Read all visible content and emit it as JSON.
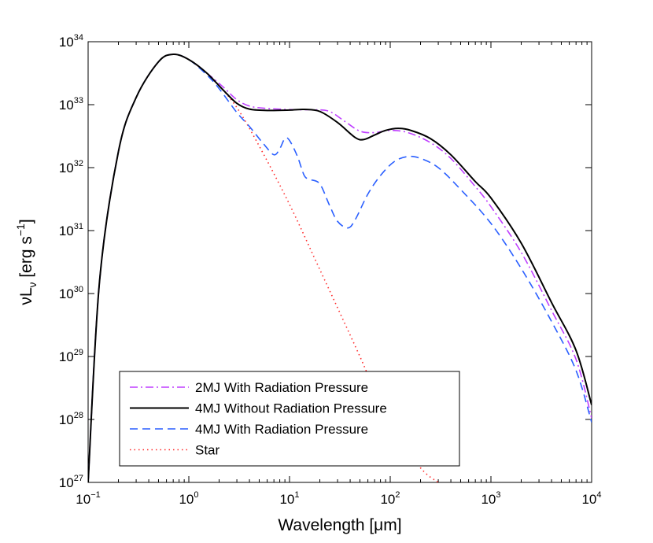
{
  "chart_data": {
    "type": "line",
    "xscale": "log",
    "yscale": "log",
    "xlim": [
      0.1,
      10000
    ],
    "ylim": [
      1e+27,
      1e+34
    ],
    "xlabel": "Wavelength [μm]",
    "ylabel": {
      "base": "νL",
      "subscript": "ν",
      "units": " [erg s",
      "units_exp": "−1",
      "units_close": "]"
    },
    "x_tick_labels": [
      {
        "base": "10",
        "exp": "−1",
        "value": 0.1
      },
      {
        "base": "10",
        "exp": "0",
        "value": 1
      },
      {
        "base": "10",
        "exp": "1",
        "value": 10
      },
      {
        "base": "10",
        "exp": "2",
        "value": 100
      },
      {
        "base": "10",
        "exp": "3",
        "value": 1000
      },
      {
        "base": "10",
        "exp": "4",
        "value": 10000
      }
    ],
    "y_tick_labels": [
      {
        "base": "10",
        "exp": "27",
        "value": 1e+27
      },
      {
        "base": "10",
        "exp": "28",
        "value": 1e+28
      },
      {
        "base": "10",
        "exp": "29",
        "value": 1e+29
      },
      {
        "base": "10",
        "exp": "30",
        "value": 1e+30
      },
      {
        "base": "10",
        "exp": "31",
        "value": 1e+31
      },
      {
        "base": "10",
        "exp": "32",
        "value": 1e+32
      },
      {
        "base": "10",
        "exp": "33",
        "value": 1e+33
      },
      {
        "base": "10",
        "exp": "34",
        "value": 1e+34
      }
    ],
    "legend_position": "bottom-left",
    "series": [
      {
        "name": "2MJ With Radiation Pressure",
        "color": "#bf3fff",
        "dash": "dashdot",
        "points": [
          [
            0.1,
            1e+27
          ],
          [
            0.13,
            1.6e+30
          ],
          [
            0.2,
            1.8e+32
          ],
          [
            0.3,
            1.3e+33
          ],
          [
            0.5,
            4.8e+33
          ],
          [
            0.7,
            6.3e+33
          ],
          [
            1.0,
            5.2e+33
          ],
          [
            1.5,
            3.2e+33
          ],
          [
            2.2,
            1.9e+33
          ],
          [
            3.0,
            1.2e+33
          ],
          [
            4.0,
            9.5e+32
          ],
          [
            5.5,
            8.8e+32
          ],
          [
            8.0,
            8.5e+32
          ],
          [
            12,
            8.3e+32
          ],
          [
            18,
            8.3e+32
          ],
          [
            25,
            7.8e+32
          ],
          [
            35,
            5.5e+32
          ],
          [
            50,
            3.8e+32
          ],
          [
            70,
            3.6e+32
          ],
          [
            100,
            3.9e+32
          ],
          [
            150,
            3.6e+32
          ],
          [
            250,
            2.5e+32
          ],
          [
            400,
            1.4e+32
          ],
          [
            700,
            5e+31
          ],
          [
            1000,
            2.4e+31
          ],
          [
            2000,
            4.5e+30
          ],
          [
            4000,
            5.4e+29
          ],
          [
            7000,
            9e+28
          ],
          [
            10000,
            1.05e+28
          ]
        ]
      },
      {
        "name": "4MJ Without Radiation Pressure",
        "color": "#000000",
        "dash": "solid",
        "points": [
          [
            0.1,
            1e+27
          ],
          [
            0.13,
            1.6e+30
          ],
          [
            0.2,
            1.8e+32
          ],
          [
            0.3,
            1.3e+33
          ],
          [
            0.5,
            4.8e+33
          ],
          [
            0.7,
            6.3e+33
          ],
          [
            1.0,
            5.2e+33
          ],
          [
            1.5,
            3.2e+33
          ],
          [
            2.2,
            1.7e+33
          ],
          [
            3.0,
            1.05e+33
          ],
          [
            4.0,
            8.5e+32
          ],
          [
            6.0,
            8.1e+32
          ],
          [
            10,
            8.2e+32
          ],
          [
            14,
            8.4e+32
          ],
          [
            20,
            7.8e+32
          ],
          [
            30,
            5.2e+32
          ],
          [
            45,
            3e+32
          ],
          [
            55,
            2.8e+32
          ],
          [
            70,
            3.3e+32
          ],
          [
            90,
            3.9e+32
          ],
          [
            120,
            4.2e+32
          ],
          [
            160,
            3.9e+32
          ],
          [
            250,
            2.9e+32
          ],
          [
            400,
            1.6e+32
          ],
          [
            700,
            6e+31
          ],
          [
            1000,
            3.3e+31
          ],
          [
            2000,
            6.3e+30
          ],
          [
            4000,
            7.2e+29
          ],
          [
            7000,
            1.25e+29
          ],
          [
            10000,
            1.7e+28
          ]
        ]
      },
      {
        "name": "4MJ With Radiation Pressure",
        "color": "#2a5fff",
        "dash": "dashed",
        "points": [
          [
            0.1,
            1e+27
          ],
          [
            0.13,
            1.6e+30
          ],
          [
            0.2,
            1.8e+32
          ],
          [
            0.3,
            1.3e+33
          ],
          [
            0.5,
            4.8e+33
          ],
          [
            0.7,
            6.3e+33
          ],
          [
            1.0,
            5.2e+33
          ],
          [
            1.5,
            3e+33
          ],
          [
            2.0,
            1.8e+33
          ],
          [
            3.0,
            7.5e+32
          ],
          [
            4.0,
            4.5e+32
          ],
          [
            5.5,
            2.4e+32
          ],
          [
            7.0,
            1.6e+32
          ],
          [
            8.0,
            2e+32
          ],
          [
            9.0,
            2.9e+32
          ],
          [
            10,
            2.7e+32
          ],
          [
            12,
            1.5e+32
          ],
          [
            14,
            7.5e+31
          ],
          [
            16,
            6.5e+31
          ],
          [
            20,
            5.5e+31
          ],
          [
            25,
            2.5e+31
          ],
          [
            30,
            1.4e+31
          ],
          [
            38,
            1.1e+31
          ],
          [
            45,
            1.5e+31
          ],
          [
            60,
            3.8e+31
          ],
          [
            80,
            7.5e+31
          ],
          [
            110,
            1.25e+32
          ],
          [
            150,
            1.5e+32
          ],
          [
            200,
            1.4e+32
          ],
          [
            300,
            1e+32
          ],
          [
            500,
            4.5e+31
          ],
          [
            1000,
            1.3e+31
          ],
          [
            2000,
            2.5e+30
          ],
          [
            4000,
            3.6e+29
          ],
          [
            7000,
            6e+28
          ],
          [
            10000,
            9e+27
          ]
        ]
      },
      {
        "name": "Star",
        "color": "#ff2a2a",
        "dash": "dotted",
        "points": [
          [
            0.1,
            1e+27
          ],
          [
            0.13,
            1.6e+30
          ],
          [
            0.2,
            1.8e+32
          ],
          [
            0.3,
            1.3e+33
          ],
          [
            0.5,
            4.8e+33
          ],
          [
            0.7,
            6.3e+33
          ],
          [
            1.0,
            5.2e+33
          ],
          [
            1.5,
            3.2e+33
          ],
          [
            2.0,
            2e+33
          ],
          [
            3.0,
            9e+32
          ],
          [
            5.0,
            2.2e+32
          ],
          [
            10,
            2.6e+31
          ],
          [
            20,
            2.4e+30
          ],
          [
            50,
            1e+29
          ],
          [
            100,
            8e+27
          ],
          [
            200,
            1.7e+27
          ],
          [
            300,
            1e+27
          ]
        ]
      }
    ]
  }
}
